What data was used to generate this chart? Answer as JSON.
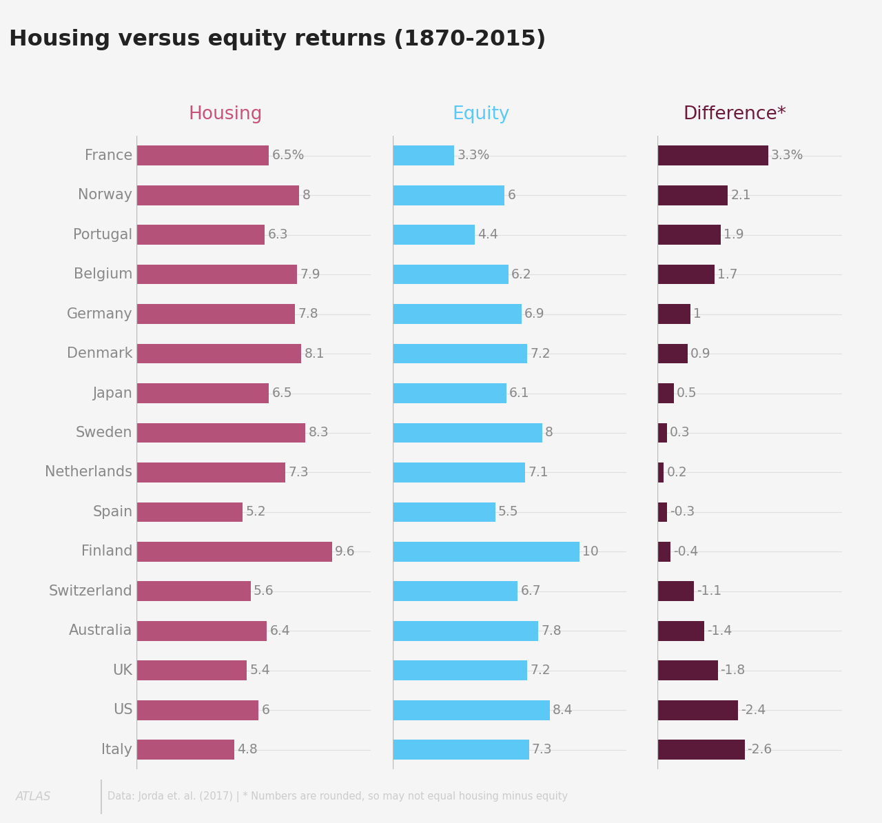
{
  "title": "Housing versus equity returns (1870-2015)",
  "col_headers": [
    "Housing",
    "Equity",
    "Difference*"
  ],
  "col_header_colors": [
    "#c9527a",
    "#5bc8f5",
    "#6b1a3a"
  ],
  "countries": [
    "France",
    "Norway",
    "Portugal",
    "Belgium",
    "Germany",
    "Denmark",
    "Japan",
    "Sweden",
    "Netherlands",
    "Spain",
    "Finland",
    "Switzerland",
    "Australia",
    "UK",
    "US",
    "Italy"
  ],
  "housing": [
    6.5,
    8.0,
    6.3,
    7.9,
    7.8,
    8.1,
    6.5,
    8.3,
    7.3,
    5.2,
    9.6,
    5.6,
    6.4,
    5.4,
    6.0,
    4.8
  ],
  "equity": [
    3.3,
    6.0,
    4.4,
    6.2,
    6.9,
    7.2,
    6.1,
    8.0,
    7.1,
    5.5,
    10.0,
    6.7,
    7.8,
    7.2,
    8.4,
    7.3
  ],
  "difference": [
    3.3,
    2.1,
    1.9,
    1.7,
    1.0,
    0.9,
    0.5,
    0.3,
    0.2,
    -0.3,
    -0.4,
    -1.1,
    -1.4,
    -1.8,
    -2.4,
    -2.6
  ],
  "housing_labels": [
    "6.5%",
    "8",
    "6.3",
    "7.9",
    "7.8",
    "8.1",
    "6.5",
    "8.3",
    "7.3",
    "5.2",
    "9.6",
    "5.6",
    "6.4",
    "5.4",
    "6",
    "4.8"
  ],
  "equity_labels": [
    "3.3%",
    "6",
    "4.4",
    "6.2",
    "6.9",
    "7.2",
    "6.1",
    "8",
    "7.1",
    "5.5",
    "10",
    "6.7",
    "7.8",
    "7.2",
    "8.4",
    "7.3"
  ],
  "diff_labels": [
    "3.3%",
    "2.1",
    "1.9",
    "1.7",
    "1",
    "0.9",
    "0.5",
    "0.3",
    "0.2",
    "-0.3",
    "-0.4",
    "-1.1",
    "-1.4",
    "-1.8",
    "-2.4",
    "-2.6"
  ],
  "housing_color": "#b5527a",
  "equity_color": "#5bc8f5",
  "diff_color": "#5c1a3a",
  "bg_color": "#f5f5f5",
  "grid_color": "#e0dede",
  "label_color": "#888888",
  "title_color": "#222222",
  "footer_color": "#cccccc",
  "footer_text": "Data: Jorda et. al. (2017) | * Numbers are rounded, so may not equal housing minus equity",
  "atlas_text": "ATLAS"
}
